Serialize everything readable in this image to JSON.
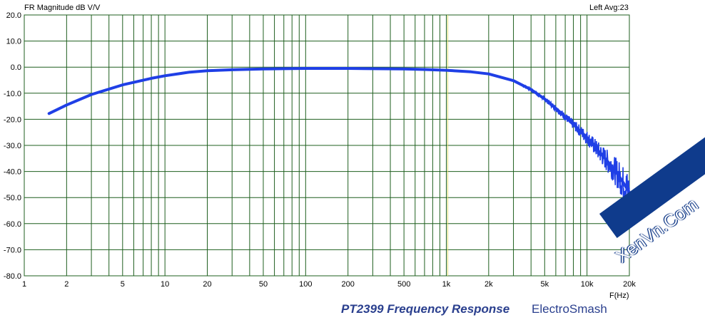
{
  "header": {
    "left": "FR Magnitude dB V/V",
    "right": "Left  Avg:23"
  },
  "caption": {
    "title": "PT2399 Frequency Response",
    "site": "ElectroSmash"
  },
  "watermark": {
    "text": "XenVn.Com"
  },
  "colors": {
    "series": "#1f3fe6",
    "grid": "#1f5f1f",
    "marker": "#d8d86a",
    "caption": "#2a3f8e",
    "watermark_band": "#0f3b8c"
  },
  "chart_data": {
    "type": "line",
    "title": "",
    "xlabel": "F(Hz)",
    "ylabel": "",
    "xscale": "log",
    "xlim": [
      1,
      20000
    ],
    "ylim": [
      -80,
      20
    ],
    "grid": true,
    "x_ticks": [
      {
        "value": 1,
        "label": "1"
      },
      {
        "value": 2,
        "label": "2"
      },
      {
        "value": 5,
        "label": "5"
      },
      {
        "value": 10,
        "label": "10"
      },
      {
        "value": 20,
        "label": "20"
      },
      {
        "value": 50,
        "label": "50"
      },
      {
        "value": 100,
        "label": "100"
      },
      {
        "value": 200,
        "label": "200"
      },
      {
        "value": 500,
        "label": "500"
      },
      {
        "value": 1000,
        "label": "1k"
      },
      {
        "value": 2000,
        "label": "2k"
      },
      {
        "value": 5000,
        "label": "5k"
      },
      {
        "value": 10000,
        "label": "10k"
      },
      {
        "value": 20000,
        "label": "20k"
      }
    ],
    "y_ticks": [
      {
        "value": 20,
        "label": "20.0"
      },
      {
        "value": 10,
        "label": "10.0"
      },
      {
        "value": 0,
        "label": "0.0"
      },
      {
        "value": -10,
        "label": "-10.0"
      },
      {
        "value": -20,
        "label": "-20.0"
      },
      {
        "value": -30,
        "label": "-30.0"
      },
      {
        "value": -40,
        "label": "-40.0"
      },
      {
        "value": -50,
        "label": "-50.0"
      },
      {
        "value": -60,
        "label": "-60.0"
      },
      {
        "value": -70,
        "label": "-70.0"
      },
      {
        "value": -80,
        "label": "-80.0"
      }
    ],
    "marker_x": 1000,
    "series": [
      {
        "x": [
          1.5,
          2,
          3,
          5,
          8,
          10,
          15,
          20,
          30,
          50,
          70,
          100,
          200,
          300,
          500,
          700,
          1000,
          1500,
          2000,
          3000,
          4000,
          5000,
          6000,
          7000,
          8000,
          10000,
          12000,
          15000,
          17000,
          20000
        ],
        "y": [
          -17.8,
          -14.5,
          -10.5,
          -6.8,
          -4.3,
          -3.3,
          -1.9,
          -1.4,
          -1.0,
          -0.7,
          -0.6,
          -0.5,
          -0.5,
          -0.6,
          -0.7,
          -0.9,
          -1.2,
          -1.8,
          -2.6,
          -5.2,
          -8.6,
          -12.2,
          -15.8,
          -19.0,
          -22.0,
          -27.0,
          -32.0,
          -38.0,
          -42.0,
          -48.0
        ]
      }
    ]
  }
}
